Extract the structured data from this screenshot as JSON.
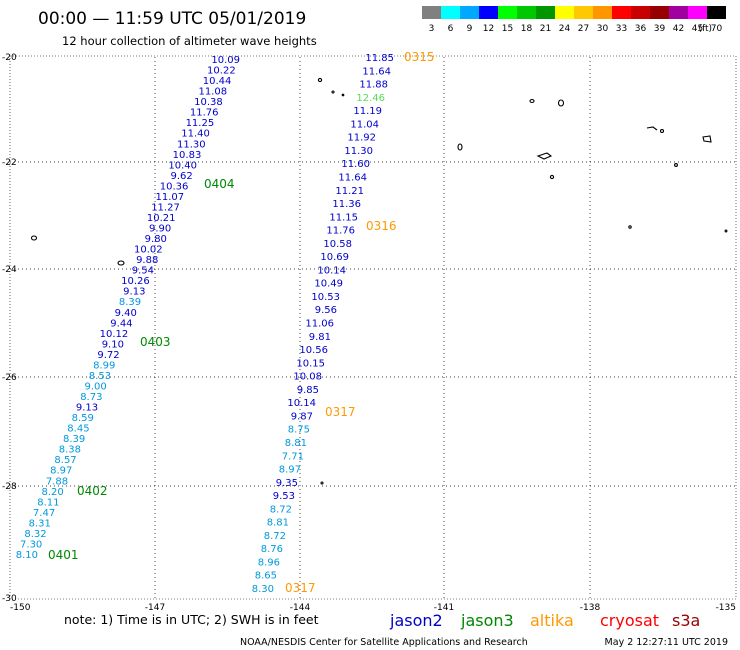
{
  "header": {
    "title": "00:00 — 11:59 UTC 05/01/2019",
    "subtitle": "12 hour collection of altimeter wave heights"
  },
  "legend": {
    "unit": "(ft)",
    "swatches": [
      {
        "label": "3",
        "color": "#808080"
      },
      {
        "label": "6",
        "color": "#00ffff"
      },
      {
        "label": "9",
        "color": "#00a8ff"
      },
      {
        "label": "12",
        "color": "#0000ff"
      },
      {
        "label": "15",
        "color": "#00ff00"
      },
      {
        "label": "18",
        "color": "#00c800"
      },
      {
        "label": "21",
        "color": "#009600"
      },
      {
        "label": "24",
        "color": "#ffff00"
      },
      {
        "label": "27",
        "color": "#ffc800"
      },
      {
        "label": "30",
        "color": "#ff9600"
      },
      {
        "label": "33",
        "color": "#ff0000"
      },
      {
        "label": "36",
        "color": "#c80000"
      },
      {
        "label": "39",
        "color": "#960000"
      },
      {
        "label": "42",
        "color": "#a000a0"
      },
      {
        "label": "45",
        "color": "#ff00ff"
      },
      {
        "label": "70",
        "color": "#000000"
      }
    ]
  },
  "axes": {
    "lat_labels": [
      "-20",
      "-22",
      "-24",
      "-26",
      "-28",
      "-30"
    ],
    "lon_labels": [
      "-150",
      "-147",
      "-144",
      "-141",
      "-138",
      "-135"
    ]
  },
  "colors": {
    "jason2": "#0000cc",
    "jason3": "#008800",
    "altika": "#ff9900",
    "cryosat": "#ff0000",
    "s3a": "#990000",
    "light": "#0099dd",
    "pale": "#55dd55"
  },
  "track_west": [
    {
      "value": "10.09",
      "c": "jason2"
    },
    {
      "value": "10.22",
      "c": "jason2"
    },
    {
      "value": "10.44",
      "c": "jason2"
    },
    {
      "value": "11.08",
      "c": "jason2"
    },
    {
      "value": "10.38",
      "c": "jason2"
    },
    {
      "value": "11.76",
      "c": "jason2"
    },
    {
      "value": "11.25",
      "c": "jason2"
    },
    {
      "value": "11.40",
      "c": "jason2"
    },
    {
      "value": "11.30",
      "c": "jason2"
    },
    {
      "value": "10.83",
      "c": "jason2"
    },
    {
      "value": "10.40",
      "c": "jason2"
    },
    {
      "value": "9.62",
      "c": "jason2"
    },
    {
      "value": "10.36",
      "c": "jason2"
    },
    {
      "value": "11.07",
      "c": "jason2"
    },
    {
      "value": "11.27",
      "c": "jason2"
    },
    {
      "value": "10.21",
      "c": "jason2"
    },
    {
      "value": "9.90",
      "c": "jason2"
    },
    {
      "value": "9.80",
      "c": "jason2"
    },
    {
      "value": "10.02",
      "c": "jason2"
    },
    {
      "value": "9.88",
      "c": "jason2"
    },
    {
      "value": "9.54",
      "c": "jason2"
    },
    {
      "value": "10.26",
      "c": "jason2"
    },
    {
      "value": "9.13",
      "c": "jason2"
    },
    {
      "value": "8.39",
      "c": "light"
    },
    {
      "value": "9.40",
      "c": "jason2"
    },
    {
      "value": "9.44",
      "c": "jason2"
    },
    {
      "value": "10.12",
      "c": "jason2"
    },
    {
      "value": "9.10",
      "c": "jason2"
    },
    {
      "value": "9.72",
      "c": "jason2"
    },
    {
      "value": "8.99",
      "c": "light"
    },
    {
      "value": "8.53",
      "c": "light"
    },
    {
      "value": "9.00",
      "c": "light"
    },
    {
      "value": "8.73",
      "c": "light"
    },
    {
      "value": "9.13",
      "c": "jason2"
    },
    {
      "value": "8.59",
      "c": "light"
    },
    {
      "value": "8.45",
      "c": "light"
    },
    {
      "value": "8.39",
      "c": "light"
    },
    {
      "value": "8.38",
      "c": "light"
    },
    {
      "value": "8.57",
      "c": "light"
    },
    {
      "value": "8.97",
      "c": "light"
    },
    {
      "value": "7.88",
      "c": "light"
    },
    {
      "value": "8.20",
      "c": "light"
    },
    {
      "value": "8.11",
      "c": "light"
    },
    {
      "value": "7.47",
      "c": "light"
    },
    {
      "value": "8.31",
      "c": "light"
    },
    {
      "value": "8.32",
      "c": "light"
    },
    {
      "value": "7.30",
      "c": "light"
    },
    {
      "value": "8.10",
      "c": "light"
    }
  ],
  "track_east": [
    {
      "value": "11.85",
      "c": "jason2"
    },
    {
      "value": "11.64",
      "c": "jason2"
    },
    {
      "value": "11.88",
      "c": "jason2"
    },
    {
      "value": "12.46",
      "c": "pale"
    },
    {
      "value": "11.19",
      "c": "jason2"
    },
    {
      "value": "11.04",
      "c": "jason2"
    },
    {
      "value": "11.92",
      "c": "jason2"
    },
    {
      "value": "11.30",
      "c": "jason2"
    },
    {
      "value": "11.60",
      "c": "jason2"
    },
    {
      "value": "11.64",
      "c": "jason2"
    },
    {
      "value": "11.21",
      "c": "jason2"
    },
    {
      "value": "11.36",
      "c": "jason2"
    },
    {
      "value": "11.15",
      "c": "jason2"
    },
    {
      "value": "11.76",
      "c": "jason2"
    },
    {
      "value": "10.58",
      "c": "jason2"
    },
    {
      "value": "10.69",
      "c": "jason2"
    },
    {
      "value": "10.14",
      "c": "jason2"
    },
    {
      "value": "10.49",
      "c": "jason2"
    },
    {
      "value": "10.53",
      "c": "jason2"
    },
    {
      "value": "9.56",
      "c": "jason2"
    },
    {
      "value": "11.06",
      "c": "jason2"
    },
    {
      "value": "9.81",
      "c": "jason2"
    },
    {
      "value": "10.56",
      "c": "jason2"
    },
    {
      "value": "10.15",
      "c": "jason2"
    },
    {
      "value": "10.08",
      "c": "jason2"
    },
    {
      "value": "9.85",
      "c": "jason2"
    },
    {
      "value": "10.14",
      "c": "jason2"
    },
    {
      "value": "9.87",
      "c": "jason2"
    },
    {
      "value": "8.75",
      "c": "light"
    },
    {
      "value": "8.81",
      "c": "light"
    },
    {
      "value": "7.71",
      "c": "light"
    },
    {
      "value": "8.97",
      "c": "light"
    },
    {
      "value": "9.35",
      "c": "jason2"
    },
    {
      "value": "9.53",
      "c": "jason2"
    },
    {
      "value": "8.72",
      "c": "light"
    },
    {
      "value": "8.81",
      "c": "light"
    },
    {
      "value": "8.72",
      "c": "light"
    },
    {
      "value": "8.76",
      "c": "light"
    },
    {
      "value": "8.96",
      "c": "light"
    },
    {
      "value": "8.65",
      "c": "light"
    },
    {
      "value": "8.30",
      "c": "light"
    }
  ],
  "time_labels": [
    {
      "text": "0315",
      "c": "altika"
    },
    {
      "text": "0316",
      "c": "altika"
    },
    {
      "text": "0317",
      "c": "altika"
    },
    {
      "text": "0317",
      "c": "altika"
    },
    {
      "text": "0404",
      "c": "jason3"
    },
    {
      "text": "0403",
      "c": "jason3"
    },
    {
      "text": "0402",
      "c": "jason3"
    },
    {
      "text": "0401",
      "c": "jason3"
    }
  ],
  "footer": {
    "note": "note:  1) Time is in UTC;  2) SWH is in feet",
    "credit": "NOAA/NESDIS Center for Satellite Applications and Research",
    "timestamp": "May  2 12:27:11 UTC 2019",
    "satellites": [
      {
        "name": "jason2",
        "c": "jason2"
      },
      {
        "name": "jason3",
        "c": "jason3"
      },
      {
        "name": "altika",
        "c": "altika"
      },
      {
        "name": "cryosat",
        "c": "cryosat"
      },
      {
        "name": "s3a",
        "c": "s3a"
      }
    ]
  }
}
